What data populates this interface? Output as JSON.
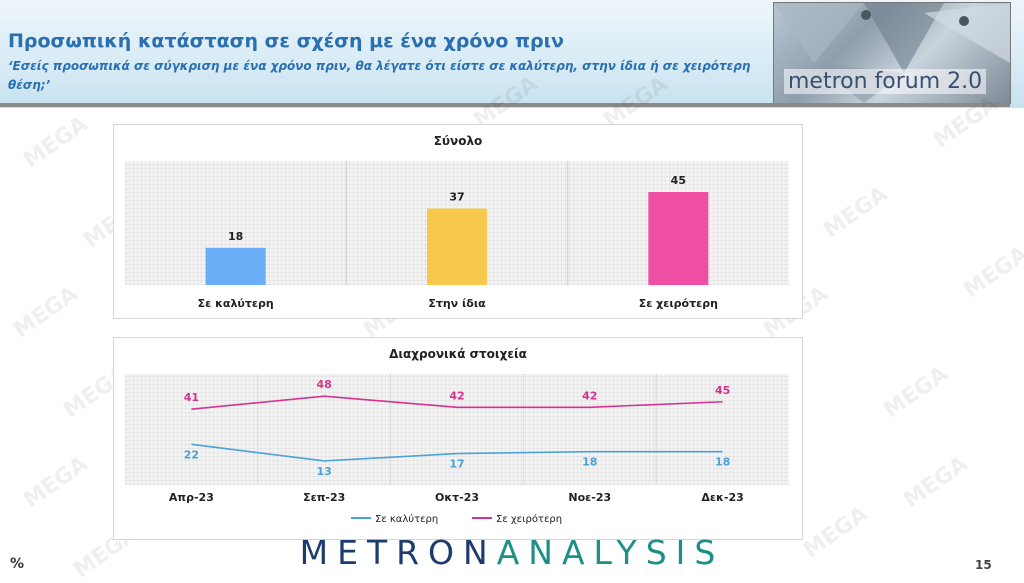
{
  "header": {
    "title": "Προσωπική κατάσταση σε σχέση με ένα χρόνο πριν",
    "subtitle": "‘Εσείς προσωπικά σε σύγκριση με ένα χρόνο πριν, θα λέγατε ότι είστε σε καλύτερη, στην ίδια ή σε χειρότερη θέση;’",
    "logo_text": "metron forum 2.0"
  },
  "watermark": "MEGA",
  "chart_data": [
    {
      "type": "bar",
      "title": "Σύνολο",
      "categories": [
        "Σε καλύτερη",
        "Στην ίδια",
        "Σε χειρότερη"
      ],
      "values": [
        18,
        37,
        45
      ],
      "colors": [
        "#6aaef8",
        "#f8c84c",
        "#ee4fa3"
      ],
      "ylim": [
        0,
        60
      ],
      "grid": true
    },
    {
      "type": "line",
      "title": "Διαχρονικά στοιχεία",
      "categories": [
        "Απρ-23",
        "Σεπ-23",
        "Οκτ-23",
        "Νοε-23",
        "Δεκ-23"
      ],
      "series": [
        {
          "name": "Σε καλύτερη",
          "values": [
            22,
            13,
            17,
            18,
            18
          ],
          "color": "#4aa3d8"
        },
        {
          "name": "Σε χειρότερη",
          "values": [
            41,
            48,
            42,
            42,
            45
          ],
          "color": "#d6338f"
        }
      ],
      "ylim": [
        0,
        60
      ],
      "legend": "bottom",
      "grid": true
    }
  ],
  "footer": {
    "unit": "%",
    "brand_main": "METRON",
    "brand_sub": "ANALYSIS",
    "page_number": "15"
  }
}
